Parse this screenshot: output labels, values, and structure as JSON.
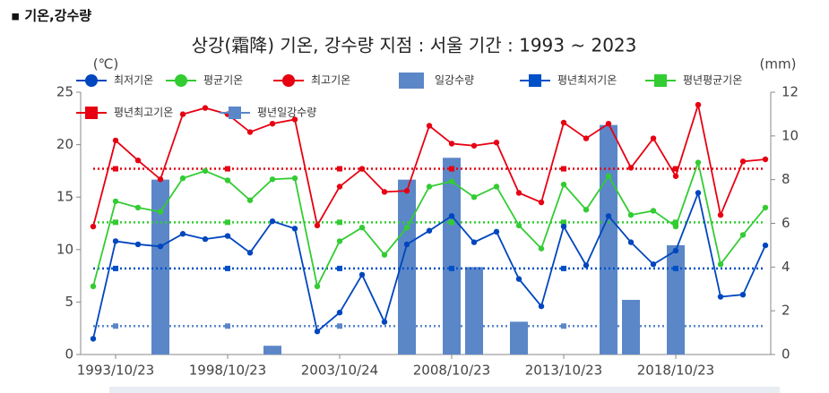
{
  "header": "▪ 기온,강수량",
  "chart_data": {
    "type": "line",
    "title": "상강(霜降) 기온, 강수량  지점 : 서울 기간 : 1993 ~ 2023",
    "y_label": "(℃)",
    "y2_label": "(mm)",
    "categories": [
      null,
      "1993/10/23",
      null,
      null,
      null,
      null,
      "1998/10/23",
      null,
      null,
      null,
      null,
      "2003/10/24",
      null,
      null,
      null,
      null,
      "2008/10/23",
      null,
      null,
      null,
      null,
      "2013/10/23",
      null,
      null,
      null,
      null,
      "2018/10/23",
      null,
      null,
      null,
      null
    ],
    "ylim": [
      0,
      25
    ],
    "yticks": [
      0,
      5,
      10,
      15,
      20,
      25
    ],
    "y2lim": [
      0,
      12
    ],
    "y2ticks": [
      0,
      2,
      4,
      6,
      8,
      10,
      12
    ],
    "series": [
      {
        "name": "최저기온",
        "color": "#0046be",
        "values": [
          1.5,
          10.8,
          10.5,
          10.3,
          11.5,
          11.0,
          11.3,
          9.7,
          12.7,
          12.0,
          2.2,
          4.0,
          7.6,
          3.1,
          10.5,
          11.8,
          13.2,
          10.7,
          11.7,
          7.2,
          4.6,
          12.2,
          8.5,
          13.2,
          10.7,
          8.6,
          9.9,
          15.4,
          5.5,
          5.7,
          10.4
        ]
      },
      {
        "name": "평균기온",
        "color": "#33cc33",
        "values": [
          6.5,
          14.6,
          14.0,
          13.6,
          16.8,
          17.5,
          16.6,
          14.7,
          16.7,
          16.8,
          6.5,
          10.8,
          12.1,
          9.5,
          12.1,
          16.0,
          16.5,
          15.0,
          16.0,
          12.3,
          10.1,
          16.2,
          13.8,
          17.0,
          13.3,
          13.7,
          12.2,
          18.3,
          8.6,
          11.4,
          14.0
        ]
      },
      {
        "name": "최고기온",
        "color": "#e60012",
        "values": [
          12.2,
          20.4,
          18.5,
          16.7,
          22.9,
          23.5,
          22.9,
          21.2,
          22.0,
          22.4,
          12.3,
          16.0,
          17.7,
          15.5,
          15.6,
          21.8,
          20.1,
          19.9,
          20.2,
          15.4,
          14.5,
          22.1,
          20.6,
          22.0,
          17.8,
          20.6,
          17.0,
          23.8,
          13.3,
          18.4,
          18.6
        ]
      },
      {
        "name": "일강수량",
        "color": "#5b87c8",
        "type": "bar",
        "axis": "y2",
        "values": [
          0,
          0,
          0,
          8.0,
          0,
          0,
          0,
          0,
          0.4,
          0,
          0,
          0,
          0,
          0,
          8.0,
          0,
          9.0,
          4.0,
          0,
          1.5,
          0,
          0,
          0,
          10.5,
          2.5,
          0,
          5.0,
          0,
          0,
          0,
          0
        ]
      },
      {
        "name": "평년최저기온",
        "color": "#0050c8",
        "type": "normal",
        "value": 8.2
      },
      {
        "name": "평년평균기온",
        "color": "#33cc33",
        "type": "normal",
        "value": 12.6
      },
      {
        "name": "평년최고기온",
        "color": "#e60012",
        "type": "normal",
        "value": 17.7
      },
      {
        "name": "평년일강수량",
        "color": "#5b87c8",
        "type": "normal",
        "axis": "y2",
        "value": 1.3
      }
    ]
  }
}
